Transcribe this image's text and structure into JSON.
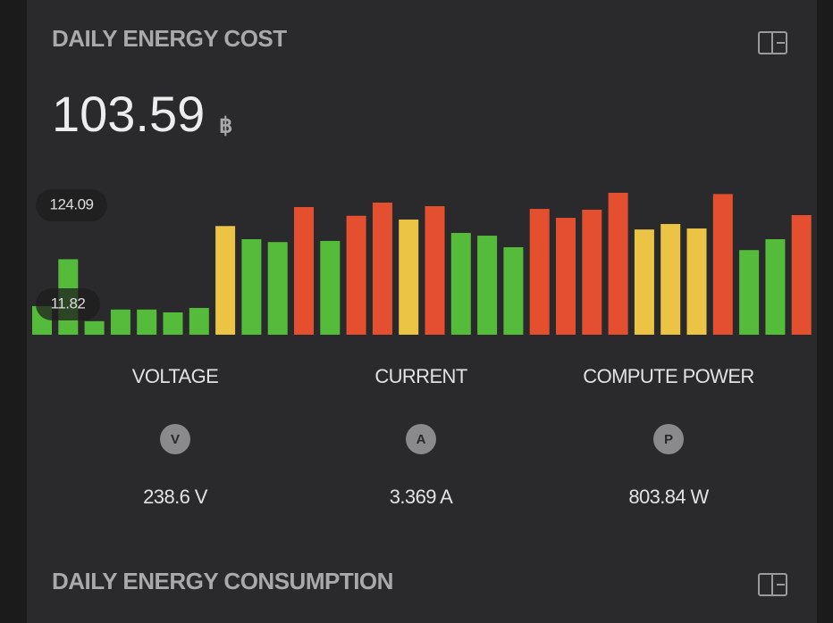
{
  "cost_card": {
    "title": "DAILY ENERGY COST",
    "state": "103.59",
    "unit": "฿",
    "entities": [
      {
        "name": "VOLTAGE",
        "icon": "V",
        "value": "238.6 V"
      },
      {
        "name": "CURRENT",
        "icon": "A",
        "value": "3.369 A"
      },
      {
        "name": "COMPUTE POWER",
        "icon": "P",
        "value": "803.84 W"
      }
    ]
  },
  "chart_data": {
    "type": "bar",
    "values": [
      25,
      66,
      11.82,
      22,
      22,
      19.5,
      23.4,
      95,
      83.5,
      81,
      111.6,
      82,
      104,
      115.5,
      100.7,
      112.4,
      89,
      86.6,
      76.5,
      110,
      102.2,
      109.3,
      124.09,
      92,
      96.8,
      92.9,
      123,
      74,
      83.5,
      104.6
    ],
    "colors": [
      "#55bb3a",
      "#55bb3a",
      "#55bb3a",
      "#55bb3a",
      "#55bb3a",
      "#55bb3a",
      "#55bb3a",
      "#ecc445",
      "#55bb3a",
      "#55bb3a",
      "#e4502f",
      "#55bb3a",
      "#e4502f",
      "#e4502f",
      "#ecc445",
      "#e4502f",
      "#55bb3a",
      "#55bb3a",
      "#55bb3a",
      "#e4502f",
      "#e4502f",
      "#e4502f",
      "#e4502f",
      "#ecc445",
      "#ecc445",
      "#ecc445",
      "#e4502f",
      "#55bb3a",
      "#55bb3a",
      "#e4502f"
    ],
    "max_label": 124.09,
    "min_label": 11.82
  },
  "consumption_card": {
    "title": "DAILY ENERGY CONSUMPTION"
  }
}
